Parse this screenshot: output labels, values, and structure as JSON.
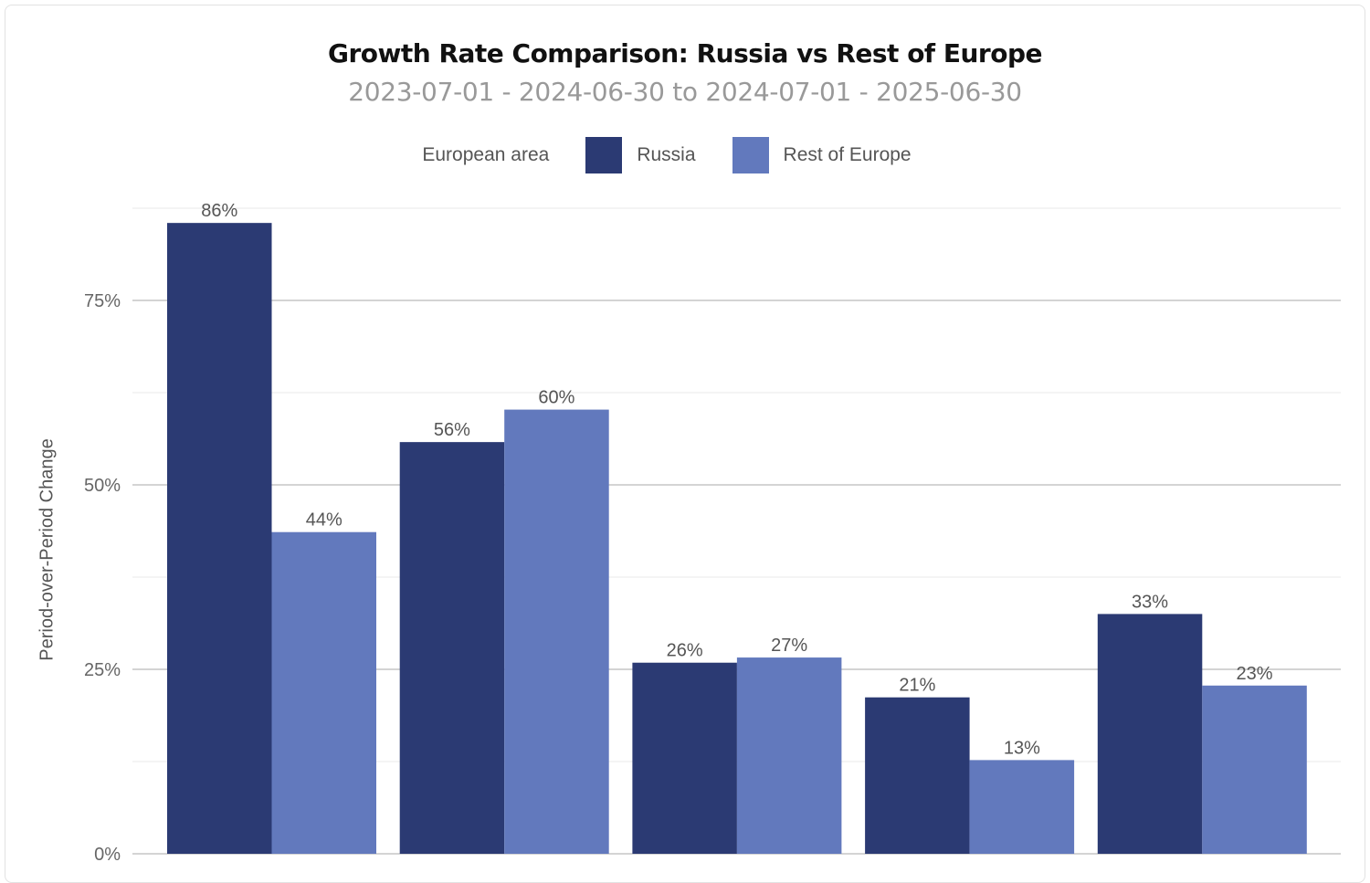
{
  "chart_data": {
    "type": "bar",
    "title": "Growth Rate Comparison: Russia vs Rest of Europe",
    "subtitle": "2023-07-01 - 2024-06-30 to 2024-07-01 - 2025-06-30",
    "ylabel": "Period-over-Period Change",
    "xlabel": "",
    "ylim": [
      0,
      87.5
    ],
    "yticks": [
      0,
      25,
      50,
      75
    ],
    "ytick_labels": [
      "0%",
      "25%",
      "50%",
      "75%"
    ],
    "grid": true,
    "legend": {
      "title": "European area",
      "placement": "top"
    },
    "categories": [
      "",
      "",
      "",
      "",
      ""
    ],
    "series": [
      {
        "name": "Russia",
        "color": "#2b3a73",
        "values": [
          85.5,
          55.8,
          25.9,
          21.2,
          32.5
        ],
        "labels": [
          "86%",
          "56%",
          "26%",
          "21%",
          "33%"
        ]
      },
      {
        "name": "Rest of Europe",
        "color": "#6279bd",
        "values": [
          43.6,
          60.2,
          26.6,
          12.7,
          22.8
        ],
        "labels": [
          "44%",
          "60%",
          "27%",
          "13%",
          "23%"
        ]
      }
    ]
  }
}
